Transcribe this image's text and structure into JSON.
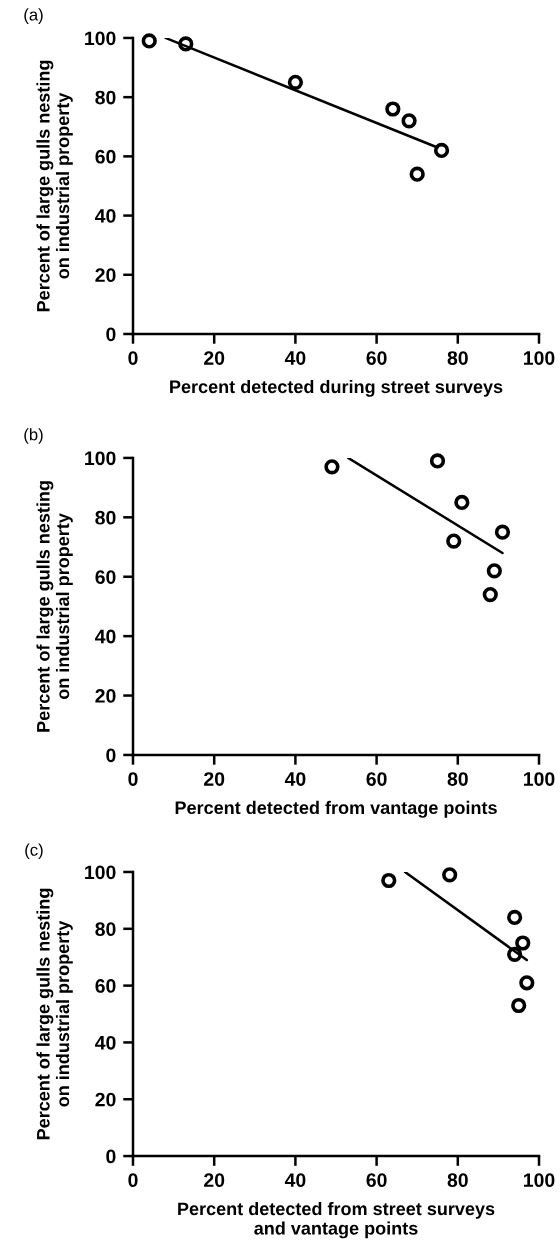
{
  "chart_data": [
    {
      "type": "scatter",
      "title": "(a)",
      "xlabel": "Percent detected during street surveys",
      "ylabel": "Percent of large gulls nesting\non industrial property",
      "xlim": [
        0,
        100
      ],
      "ylim": [
        0,
        100
      ],
      "xticks": [
        0,
        20,
        40,
        60,
        80,
        100
      ],
      "yticks": [
        0,
        20,
        40,
        60,
        80,
        100
      ],
      "grid": false,
      "series": [
        {
          "color": "#000000",
          "marker": "circle",
          "x": [
            4,
            13,
            40,
            64,
            68,
            70,
            76
          ],
          "values": [
            99,
            98,
            85,
            76,
            72,
            54,
            62
          ]
        },
        {
          "type": "line",
          "color": "#000000",
          "x": [
            8,
            75
          ],
          "values": [
            100,
            63
          ]
        }
      ]
    },
    {
      "type": "scatter",
      "title": "(b)",
      "xlabel": "Percent detected from vantage points",
      "ylabel": "Percent of large gulls nesting\non industrial property",
      "xlim": [
        0,
        100
      ],
      "ylim": [
        0,
        100
      ],
      "xticks": [
        0,
        20,
        40,
        60,
        80,
        100
      ],
      "yticks": [
        0,
        20,
        40,
        60,
        80,
        100
      ],
      "grid": false,
      "series": [
        {
          "color": "#000000",
          "marker": "circle",
          "x": [
            49,
            75,
            81,
            79,
            91,
            89,
            88
          ],
          "values": [
            97,
            99,
            85,
            72,
            75,
            62,
            54
          ]
        },
        {
          "type": "line",
          "color": "#000000",
          "x": [
            53,
            91
          ],
          "values": [
            100,
            68
          ]
        }
      ]
    },
    {
      "type": "scatter",
      "title": "(c)",
      "xlabel": "Percent detected from street surveys\nand vantage points",
      "ylabel": "Percent of large gulls nesting\non industrial property",
      "xlim": [
        0,
        100
      ],
      "ylim": [
        0,
        100
      ],
      "xticks": [
        0,
        20,
        40,
        60,
        80,
        100
      ],
      "yticks": [
        0,
        20,
        40,
        60,
        80,
        100
      ],
      "grid": false,
      "series": [
        {
          "color": "#000000",
          "marker": "circle",
          "x": [
            63,
            78,
            94,
            96,
            94,
            97,
            95
          ],
          "values": [
            97,
            99,
            84,
            75,
            71,
            61,
            53
          ]
        },
        {
          "type": "line",
          "color": "#000000",
          "x": [
            67,
            97
          ],
          "values": [
            100,
            69
          ]
        }
      ]
    }
  ]
}
